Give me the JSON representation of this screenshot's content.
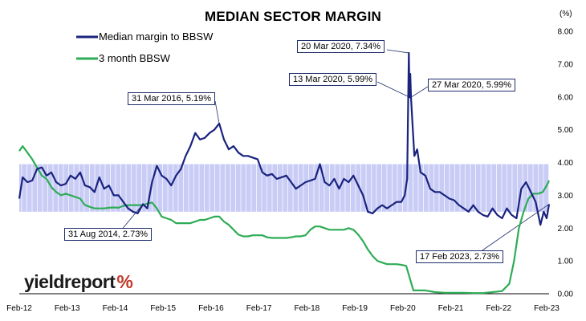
{
  "chart_data": {
    "type": "line",
    "title": "MEDIAN SECTOR MARGIN",
    "unit": "(%)",
    "ylim": [
      0,
      8
    ],
    "y_ticks": [
      "0.00",
      "1.00",
      "2.00",
      "3.00",
      "4.00",
      "5.00",
      "6.00",
      "7.00",
      "8.00"
    ],
    "x_ticks": [
      "Feb-12",
      "Feb-13",
      "Feb-14",
      "Feb-15",
      "Feb-16",
      "Feb-17",
      "Feb-18",
      "Feb-19",
      "Feb-20",
      "Feb-21",
      "Feb-22",
      "Feb-23"
    ],
    "grid": false,
    "legend_position": "top-left",
    "band": {
      "low": 2.5,
      "high": 3.95,
      "color": "#c9cdf6"
    },
    "series": [
      {
        "name": "Median margin to BBSW",
        "color": "#1a237e",
        "points": [
          [
            2012.08,
            2.9
          ],
          [
            2012.15,
            3.55
          ],
          [
            2012.25,
            3.4
          ],
          [
            2012.35,
            3.45
          ],
          [
            2012.45,
            3.8
          ],
          [
            2012.55,
            3.85
          ],
          [
            2012.65,
            3.6
          ],
          [
            2012.75,
            3.7
          ],
          [
            2012.85,
            3.4
          ],
          [
            2012.95,
            3.3
          ],
          [
            2013.05,
            3.35
          ],
          [
            2013.15,
            3.6
          ],
          [
            2013.25,
            3.5
          ],
          [
            2013.35,
            3.7
          ],
          [
            2013.45,
            3.3
          ],
          [
            2013.55,
            3.25
          ],
          [
            2013.65,
            3.1
          ],
          [
            2013.75,
            3.55
          ],
          [
            2013.85,
            3.2
          ],
          [
            2013.95,
            3.3
          ],
          [
            2014.05,
            3.0
          ],
          [
            2014.15,
            3.0
          ],
          [
            2014.25,
            2.8
          ],
          [
            2014.35,
            2.6
          ],
          [
            2014.45,
            2.5
          ],
          [
            2014.55,
            2.45
          ],
          [
            2014.66,
            2.73
          ],
          [
            2014.75,
            2.6
          ],
          [
            2014.85,
            3.4
          ],
          [
            2014.95,
            3.9
          ],
          [
            2015.05,
            3.6
          ],
          [
            2015.15,
            3.5
          ],
          [
            2015.25,
            3.3
          ],
          [
            2015.35,
            3.6
          ],
          [
            2015.45,
            3.8
          ],
          [
            2015.55,
            4.2
          ],
          [
            2015.65,
            4.5
          ],
          [
            2015.75,
            4.9
          ],
          [
            2015.85,
            4.7
          ],
          [
            2015.95,
            4.75
          ],
          [
            2016.05,
            4.9
          ],
          [
            2016.15,
            5.0
          ],
          [
            2016.25,
            5.19
          ],
          [
            2016.35,
            4.7
          ],
          [
            2016.45,
            4.4
          ],
          [
            2016.55,
            4.5
          ],
          [
            2016.65,
            4.3
          ],
          [
            2016.75,
            4.2
          ],
          [
            2016.85,
            4.2
          ],
          [
            2016.95,
            4.15
          ],
          [
            2017.05,
            4.1
          ],
          [
            2017.15,
            3.7
          ],
          [
            2017.25,
            3.6
          ],
          [
            2017.35,
            3.65
          ],
          [
            2017.45,
            3.5
          ],
          [
            2017.55,
            3.55
          ],
          [
            2017.65,
            3.6
          ],
          [
            2017.75,
            3.4
          ],
          [
            2017.85,
            3.2
          ],
          [
            2017.95,
            3.3
          ],
          [
            2018.05,
            3.4
          ],
          [
            2018.15,
            3.45
          ],
          [
            2018.25,
            3.5
          ],
          [
            2018.35,
            3.95
          ],
          [
            2018.45,
            3.4
          ],
          [
            2018.55,
            3.3
          ],
          [
            2018.65,
            3.5
          ],
          [
            2018.75,
            3.2
          ],
          [
            2018.85,
            3.5
          ],
          [
            2018.95,
            3.4
          ],
          [
            2019.05,
            3.6
          ],
          [
            2019.15,
            3.3
          ],
          [
            2019.25,
            3.0
          ],
          [
            2019.35,
            2.5
          ],
          [
            2019.45,
            2.45
          ],
          [
            2019.55,
            2.6
          ],
          [
            2019.65,
            2.7
          ],
          [
            2019.75,
            2.6
          ],
          [
            2019.85,
            2.7
          ],
          [
            2019.95,
            2.8
          ],
          [
            2020.05,
            2.8
          ],
          [
            2020.12,
            3.0
          ],
          [
            2020.17,
            3.5
          ],
          [
            2020.205,
            7.34
          ],
          [
            2020.22,
            5.99
          ],
          [
            2020.235,
            6.7
          ],
          [
            2020.25,
            5.99
          ],
          [
            2020.28,
            5.2
          ],
          [
            2020.32,
            4.2
          ],
          [
            2020.38,
            4.4
          ],
          [
            2020.45,
            3.7
          ],
          [
            2020.55,
            3.6
          ],
          [
            2020.65,
            3.2
          ],
          [
            2020.75,
            3.1
          ],
          [
            2020.85,
            3.1
          ],
          [
            2020.95,
            3.0
          ],
          [
            2021.05,
            2.9
          ],
          [
            2021.15,
            2.85
          ],
          [
            2021.25,
            2.7
          ],
          [
            2021.35,
            2.6
          ],
          [
            2021.45,
            2.5
          ],
          [
            2021.55,
            2.7
          ],
          [
            2021.65,
            2.5
          ],
          [
            2021.75,
            2.4
          ],
          [
            2021.85,
            2.35
          ],
          [
            2021.95,
            2.6
          ],
          [
            2022.05,
            2.4
          ],
          [
            2022.15,
            2.3
          ],
          [
            2022.25,
            2.6
          ],
          [
            2022.35,
            2.4
          ],
          [
            2022.45,
            2.3
          ],
          [
            2022.55,
            3.2
          ],
          [
            2022.65,
            3.4
          ],
          [
            2022.75,
            3.1
          ],
          [
            2022.85,
            2.8
          ],
          [
            2022.95,
            2.1
          ],
          [
            2023.02,
            2.5
          ],
          [
            2023.08,
            2.3
          ],
          [
            2023.13,
            2.73
          ]
        ]
      },
      {
        "name": "3 month BBSW",
        "color": "#2eac56",
        "points": [
          [
            2012.08,
            4.35
          ],
          [
            2012.15,
            4.5
          ],
          [
            2012.25,
            4.3
          ],
          [
            2012.35,
            4.1
          ],
          [
            2012.45,
            3.85
          ],
          [
            2012.55,
            3.6
          ],
          [
            2012.65,
            3.5
          ],
          [
            2012.75,
            3.25
          ],
          [
            2012.85,
            3.1
          ],
          [
            2012.95,
            3.0
          ],
          [
            2013.05,
            3.05
          ],
          [
            2013.15,
            3.0
          ],
          [
            2013.25,
            2.95
          ],
          [
            2013.35,
            2.9
          ],
          [
            2013.45,
            2.7
          ],
          [
            2013.55,
            2.65
          ],
          [
            2013.65,
            2.6
          ],
          [
            2013.75,
            2.6
          ],
          [
            2013.85,
            2.6
          ],
          [
            2013.95,
            2.62
          ],
          [
            2014.05,
            2.63
          ],
          [
            2014.15,
            2.62
          ],
          [
            2014.25,
            2.68
          ],
          [
            2014.35,
            2.7
          ],
          [
            2014.45,
            2.7
          ],
          [
            2014.55,
            2.7
          ],
          [
            2014.66,
            2.7
          ],
          [
            2014.75,
            2.75
          ],
          [
            2014.85,
            2.78
          ],
          [
            2014.95,
            2.6
          ],
          [
            2015.05,
            2.35
          ],
          [
            2015.15,
            2.3
          ],
          [
            2015.25,
            2.25
          ],
          [
            2015.35,
            2.15
          ],
          [
            2015.45,
            2.15
          ],
          [
            2015.55,
            2.15
          ],
          [
            2015.65,
            2.15
          ],
          [
            2015.75,
            2.2
          ],
          [
            2015.85,
            2.25
          ],
          [
            2015.95,
            2.25
          ],
          [
            2016.05,
            2.3
          ],
          [
            2016.15,
            2.35
          ],
          [
            2016.25,
            2.35
          ],
          [
            2016.35,
            2.2
          ],
          [
            2016.45,
            2.1
          ],
          [
            2016.55,
            1.95
          ],
          [
            2016.65,
            1.8
          ],
          [
            2016.75,
            1.75
          ],
          [
            2016.85,
            1.75
          ],
          [
            2016.95,
            1.78
          ],
          [
            2017.05,
            1.78
          ],
          [
            2017.15,
            1.78
          ],
          [
            2017.25,
            1.72
          ],
          [
            2017.35,
            1.7
          ],
          [
            2017.45,
            1.7
          ],
          [
            2017.55,
            1.7
          ],
          [
            2017.65,
            1.7
          ],
          [
            2017.75,
            1.72
          ],
          [
            2017.85,
            1.75
          ],
          [
            2017.95,
            1.75
          ],
          [
            2018.05,
            1.78
          ],
          [
            2018.15,
            1.95
          ],
          [
            2018.25,
            2.05
          ],
          [
            2018.35,
            2.05
          ],
          [
            2018.45,
            2.0
          ],
          [
            2018.55,
            1.95
          ],
          [
            2018.65,
            1.95
          ],
          [
            2018.75,
            1.95
          ],
          [
            2018.85,
            1.95
          ],
          [
            2018.95,
            2.0
          ],
          [
            2019.05,
            1.95
          ],
          [
            2019.15,
            1.8
          ],
          [
            2019.25,
            1.6
          ],
          [
            2019.35,
            1.35
          ],
          [
            2019.45,
            1.15
          ],
          [
            2019.55,
            1.0
          ],
          [
            2019.65,
            0.95
          ],
          [
            2019.75,
            0.9
          ],
          [
            2019.85,
            0.9
          ],
          [
            2019.95,
            0.9
          ],
          [
            2020.05,
            0.88
          ],
          [
            2020.15,
            0.85
          ],
          [
            2020.22,
            0.5
          ],
          [
            2020.3,
            0.1
          ],
          [
            2020.4,
            0.1
          ],
          [
            2020.55,
            0.1
          ],
          [
            2020.75,
            0.05
          ],
          [
            2020.95,
            0.03
          ],
          [
            2021.15,
            0.03
          ],
          [
            2021.35,
            0.03
          ],
          [
            2021.55,
            0.02
          ],
          [
            2021.75,
            0.02
          ],
          [
            2021.95,
            0.05
          ],
          [
            2022.15,
            0.08
          ],
          [
            2022.3,
            0.3
          ],
          [
            2022.4,
            1.0
          ],
          [
            2022.5,
            2.0
          ],
          [
            2022.6,
            2.5
          ],
          [
            2022.7,
            2.9
          ],
          [
            2022.8,
            3.05
          ],
          [
            2022.9,
            3.05
          ],
          [
            2023.0,
            3.1
          ],
          [
            2023.08,
            3.3
          ],
          [
            2023.13,
            3.45
          ]
        ]
      }
    ],
    "annotations": [
      {
        "label": "20 Mar 2020,  7.34%",
        "point": [
          2020.205,
          7.34
        ]
      },
      {
        "label": "31 Mar 2016,  5.19%",
        "point": [
          2016.25,
          5.19
        ]
      },
      {
        "label": "13 Mar 2020,  5.99%",
        "point": [
          2020.22,
          5.99
        ]
      },
      {
        "label": "27 Mar 2020,  5.99%",
        "point": [
          2020.25,
          5.99
        ]
      },
      {
        "label": "31 Aug 2014,  2.73%",
        "point": [
          2014.66,
          2.73
        ]
      },
      {
        "label": "17 Feb 2023,  2.73%",
        "point": [
          2023.13,
          2.73
        ]
      }
    ]
  },
  "logo": {
    "text": "yieldreport",
    "symbol": "%"
  }
}
